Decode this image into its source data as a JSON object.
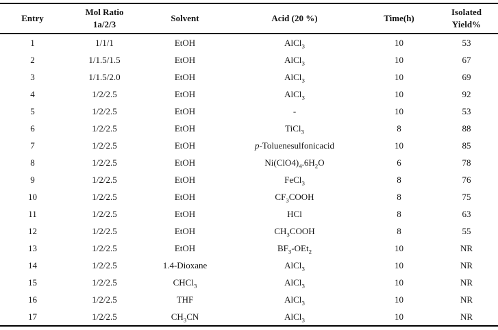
{
  "table": {
    "columns": [
      {
        "key": "entry",
        "label": "Entry"
      },
      {
        "key": "mol_ratio",
        "label": "Mol Ratio\n1a/2/3"
      },
      {
        "key": "solvent",
        "label": "Solvent"
      },
      {
        "key": "acid",
        "label": "Acid (20 %)"
      },
      {
        "key": "time_h",
        "label": "Time(h)"
      },
      {
        "key": "isolated_yield",
        "label": "Isolated\nYield%"
      }
    ],
    "rows": [
      [
        "1",
        "1/1/1",
        "EtOH",
        "AlCl_{3}",
        "10",
        "53"
      ],
      [
        "2",
        "1/1.5/1.5",
        "EtOH",
        "AlCl_{3}",
        "10",
        "67"
      ],
      [
        "3",
        "1/1.5/2.0",
        "EtOH",
        "AlCl_{3}",
        "10",
        "69"
      ],
      [
        "4",
        "1/2/2.5",
        "EtOH",
        "AlCl_{3}",
        "10",
        "92"
      ],
      [
        "5",
        "1/2/2.5",
        "EtOH",
        "-",
        "10",
        "53"
      ],
      [
        "6",
        "1/2/2.5",
        "EtOH",
        "TiCl_{3}",
        "8",
        "88"
      ],
      [
        "7",
        "1/2/2.5",
        "EtOH",
        "*p*-Toluenesulfonicacid",
        "10",
        "85"
      ],
      [
        "8",
        "1/2/2.5",
        "EtOH",
        "Ni(ClO4)_{4}.6H_{2}O",
        "6",
        "78"
      ],
      [
        "9",
        "1/2/2.5",
        "EtOH",
        "FeCl_{3}",
        "8",
        "76"
      ],
      [
        "10",
        "1/2/2.5",
        "EtOH",
        "CF_{3}COOH",
        "8",
        "75"
      ],
      [
        "11",
        "1/2/2.5",
        "EtOH",
        "HCl",
        "8",
        "63"
      ],
      [
        "12",
        "1/2/2.5",
        "EtOH",
        "CH_{3}COOH",
        "8",
        "55"
      ],
      [
        "13",
        "1/2/2.5",
        "EtOH",
        "BF_{3}-OEt_{2}",
        "10",
        "NR"
      ],
      [
        "14",
        "1/2/2.5",
        "1.4-Dioxane",
        "AlCl_{3}",
        "10",
        "NR"
      ],
      [
        "15",
        "1/2/2.5",
        "CHCl_{3}",
        "AlCl_{3}",
        "10",
        "NR"
      ],
      [
        "16",
        "1/2/2.5",
        "THF",
        "AlCl_{3}",
        "10",
        "NR"
      ],
      [
        "17",
        "1/2/2.5",
        "CH_{3}CN",
        "AlCl_{3}",
        "10",
        "NR"
      ]
    ]
  },
  "colors": {
    "text": "#141414",
    "border": "#000000",
    "background": "#ffffff"
  }
}
